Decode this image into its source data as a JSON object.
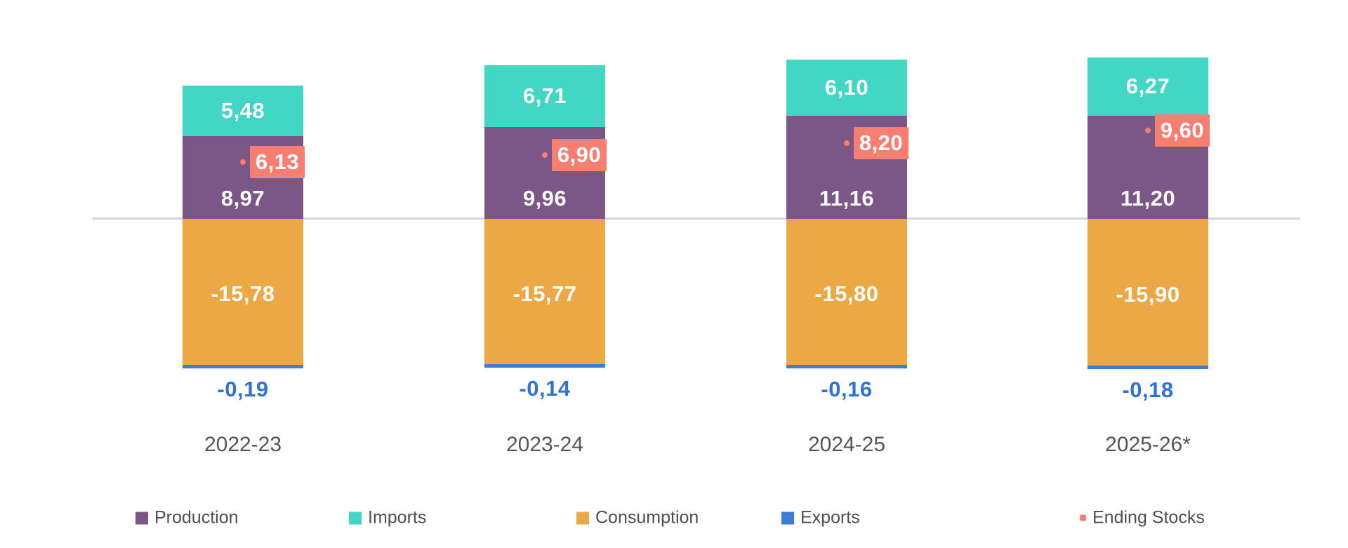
{
  "chart_data": {
    "type": "bar",
    "subtype": "stacked-column-with-point-series",
    "title": "",
    "xlabel": "",
    "ylabel": "",
    "grid": false,
    "baseline": 0,
    "legend_position": "bottom",
    "categories": [
      "2022-23",
      "2023-24",
      "2024-25",
      "2025-26*"
    ],
    "series": [
      {
        "name": "Production",
        "kind": "stacked-bar",
        "color": "#7b5787",
        "values": [
          8.97,
          9.96,
          11.16,
          11.2
        ],
        "labels": [
          "8,97",
          "9,96",
          "11,16",
          "11,20"
        ],
        "label_color": "#ffffff"
      },
      {
        "name": "Imports",
        "kind": "stacked-bar",
        "color": "#42d6c5",
        "values": [
          5.48,
          6.71,
          6.1,
          6.27
        ],
        "labels": [
          "5,48",
          "6,71",
          "6,10",
          "6,27"
        ],
        "label_color": "#ffffff"
      },
      {
        "name": "Consumption",
        "kind": "stacked-bar",
        "color": "#eba844",
        "values": [
          -15.78,
          -15.77,
          -15.8,
          -15.9
        ],
        "labels": [
          "-15,78",
          "-15,77",
          "-15,80",
          "-15,90"
        ],
        "label_color": "#ffffff"
      },
      {
        "name": "Exports",
        "kind": "stacked-bar",
        "color": "#3b7cd9",
        "values": [
          -0.19,
          -0.14,
          -0.16,
          -0.18
        ],
        "labels": [
          "-0,19",
          "-0,14",
          "-0,16",
          "-0,18"
        ],
        "label_color": "#2e74d6"
      },
      {
        "name": "Ending Stocks",
        "kind": "point",
        "color": "#f87e72",
        "values": [
          6.13,
          6.9,
          8.2,
          9.6
        ],
        "labels": [
          "6,13",
          "6,90",
          "8,20",
          "9,60"
        ],
        "label_color": "#ffffff"
      }
    ],
    "legend": [
      {
        "label": "Production",
        "color": "#7b5787",
        "marker": "square"
      },
      {
        "label": "Imports",
        "color": "#42d6c5",
        "marker": "square"
      },
      {
        "label": "Consumption",
        "color": "#eba844",
        "marker": "square"
      },
      {
        "label": "Exports",
        "color": "#3b7cd9",
        "marker": "square"
      },
      {
        "label": "Ending Stocks",
        "color": "#f87e72",
        "marker": "small-dot"
      }
    ],
    "colors": {
      "axis_line": "#d7d7d7",
      "category_label": "#565656",
      "legend_label": "#4f4f4f",
      "in_bar_label": "#ffffff",
      "exports_label": "#2e74d6",
      "ending_stocks_box": "#f87e72"
    }
  }
}
